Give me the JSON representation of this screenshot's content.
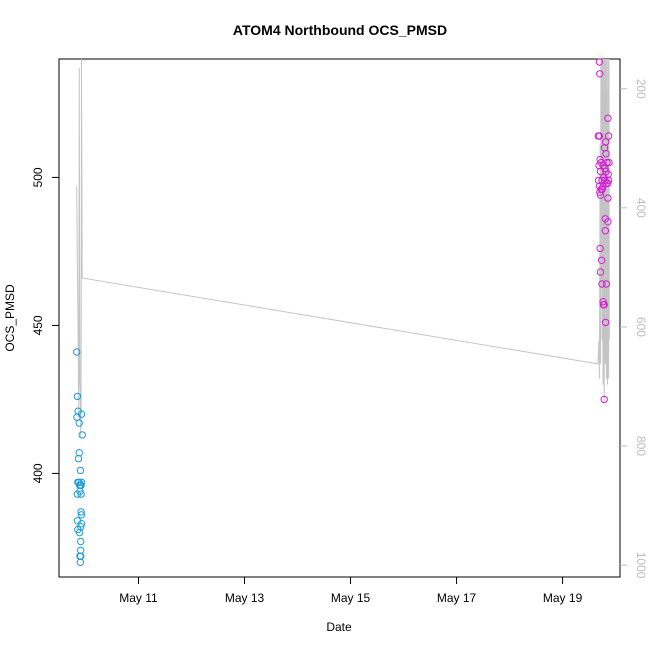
{
  "colors": {
    "series_a": "#1e9bdc",
    "series_b": "#d41ed4",
    "line": "#c4c4c4",
    "right_axis": "#bdbdbd"
  },
  "chart_data": {
    "type": "scatter",
    "title": "ATOM4 Northbound OCS_PMSD",
    "xlabel": "Date",
    "ylabel": "OCS_PMSD",
    "x_unit": "date",
    "xlim": [
      "2024-05-09T12:00",
      "2024-05-20T02:00"
    ],
    "ylim": [
      365,
      540
    ],
    "y_right_lim_reversed": [
      150,
      1020
    ],
    "x_ticks": [
      {
        "x": "2024-05-11T00:00",
        "label": "May 11"
      },
      {
        "x": "2024-05-13T00:00",
        "label": "May 13"
      },
      {
        "x": "2024-05-15T00:00",
        "label": "May 15"
      },
      {
        "x": "2024-05-17T00:00",
        "label": "May 17"
      },
      {
        "x": "2024-05-19T00:00",
        "label": "May 19"
      }
    ],
    "y_ticks": [
      400,
      450,
      500
    ],
    "y_right_ticks": [
      200,
      400,
      600,
      800,
      1000
    ],
    "grid": false,
    "series": [
      {
        "color_key": "series_a",
        "points": [
          [
            "2024-05-09T20:00",
            441
          ],
          [
            "2024-05-09T20:20",
            426
          ],
          [
            "2024-05-09T20:10",
            419
          ],
          [
            "2024-05-09T20:40",
            421
          ],
          [
            "2024-05-09T21:10",
            417
          ],
          [
            "2024-05-09T22:10",
            420
          ],
          [
            "2024-05-09T22:30",
            413
          ],
          [
            "2024-05-09T21:10",
            407
          ],
          [
            "2024-05-09T20:50",
            405
          ],
          [
            "2024-05-09T21:40",
            401
          ],
          [
            "2024-05-09T20:30",
            397
          ],
          [
            "2024-05-09T21:00",
            397
          ],
          [
            "2024-05-09T21:20",
            396
          ],
          [
            "2024-05-09T21:40",
            396
          ],
          [
            "2024-05-09T22:00",
            396
          ],
          [
            "2024-05-09T22:10",
            397
          ],
          [
            "2024-05-09T20:20",
            393
          ],
          [
            "2024-05-09T21:30",
            394
          ],
          [
            "2024-05-09T22:00",
            393
          ],
          [
            "2024-05-09T22:00",
            387
          ],
          [
            "2024-05-09T22:10",
            386
          ],
          [
            "2024-05-09T20:20",
            384
          ],
          [
            "2024-05-09T22:10",
            383
          ],
          [
            "2024-05-09T21:50",
            382
          ],
          [
            "2024-05-09T20:30",
            381
          ],
          [
            "2024-05-09T21:20",
            380
          ],
          [
            "2024-05-09T21:50",
            377
          ],
          [
            "2024-05-09T21:50",
            374
          ],
          [
            "2024-05-09T21:30",
            372
          ],
          [
            "2024-05-09T21:50",
            372
          ],
          [
            "2024-05-09T21:40",
            370
          ]
        ]
      },
      {
        "color_key": "series_b",
        "points": [
          [
            "2024-05-19T16:40",
            539
          ],
          [
            "2024-05-19T16:50",
            535
          ],
          [
            "2024-05-19T20:30",
            520
          ],
          [
            "2024-05-19T16:10",
            514
          ],
          [
            "2024-05-19T16:40",
            514
          ],
          [
            "2024-05-19T19:30",
            512
          ],
          [
            "2024-05-19T20:50",
            514
          ],
          [
            "2024-05-19T19:00",
            510
          ],
          [
            "2024-05-19T19:40",
            508
          ],
          [
            "2024-05-19T17:00",
            506
          ],
          [
            "2024-05-19T17:30",
            505
          ],
          [
            "2024-05-19T16:30",
            504
          ],
          [
            "2024-05-19T20:10",
            505
          ],
          [
            "2024-05-19T21:00",
            505
          ],
          [
            "2024-05-19T18:20",
            504
          ],
          [
            "2024-05-19T19:10",
            503
          ],
          [
            "2024-05-19T17:10",
            502
          ],
          [
            "2024-05-19T19:40",
            502
          ],
          [
            "2024-05-19T20:40",
            501
          ],
          [
            "2024-05-19T18:40",
            500
          ],
          [
            "2024-05-19T16:20",
            499
          ],
          [
            "2024-05-19T17:50",
            499
          ],
          [
            "2024-05-19T19:10",
            499
          ],
          [
            "2024-05-19T20:50",
            499
          ],
          [
            "2024-05-19T19:50",
            498
          ],
          [
            "2024-05-19T20:30",
            498
          ],
          [
            "2024-05-19T18:20",
            497
          ],
          [
            "2024-05-19T16:40",
            497
          ],
          [
            "2024-05-19T17:30",
            496
          ],
          [
            "2024-05-19T16:50",
            495
          ],
          [
            "2024-05-19T18:00",
            496
          ],
          [
            "2024-05-19T20:30",
            493
          ],
          [
            "2024-05-19T17:10",
            494
          ],
          [
            "2024-05-19T19:20",
            486
          ],
          [
            "2024-05-19T20:30",
            485
          ],
          [
            "2024-05-19T19:20",
            482
          ],
          [
            "2024-05-19T17:00",
            476
          ],
          [
            "2024-05-19T17:40",
            472
          ],
          [
            "2024-05-19T17:10",
            468
          ],
          [
            "2024-05-19T17:50",
            464
          ],
          [
            "2024-05-19T19:50",
            464
          ],
          [
            "2024-05-19T18:20",
            458
          ],
          [
            "2024-05-19T18:30",
            457
          ],
          [
            "2024-05-19T18:50",
            457
          ],
          [
            "2024-05-19T19:30",
            451
          ],
          [
            "2024-05-19T18:50",
            425
          ]
        ]
      }
    ],
    "line_series": {
      "color_key": "line",
      "points": [
        [
          "2024-05-09T20:00",
          497
        ],
        [
          "2024-05-09T20:10",
          485
        ],
        [
          "2024-05-09T20:20",
          470
        ],
        [
          "2024-05-09T20:40",
          447
        ],
        [
          "2024-05-09T20:50",
          428
        ],
        [
          "2024-05-09T21:00",
          419
        ],
        [
          "2024-05-09T21:10",
          537
        ],
        [
          "2024-05-09T21:20",
          475
        ],
        [
          "2024-05-09T21:30",
          430
        ],
        [
          "2024-05-09T21:40",
          428
        ],
        [
          "2024-05-09T21:50",
          412
        ],
        [
          "2024-05-09T22:00",
          421
        ],
        [
          "2024-05-09T22:10",
          540
        ],
        [
          "2024-05-09T22:30",
          466
        ],
        [
          "2024-05-19T16:00",
          437
        ],
        [
          "2024-05-19T16:30",
          445
        ],
        [
          "2024-05-19T16:40",
          432
        ],
        [
          "2024-05-19T16:50",
          470
        ],
        [
          "2024-05-19T17:00",
          511
        ],
        [
          "2024-05-19T17:10",
          437
        ],
        [
          "2024-05-19T17:20",
          540
        ],
        [
          "2024-05-19T17:30",
          463
        ],
        [
          "2024-05-19T17:40",
          540
        ],
        [
          "2024-05-19T17:50",
          445
        ],
        [
          "2024-05-19T18:00",
          540
        ],
        [
          "2024-05-19T18:10",
          450
        ],
        [
          "2024-05-19T18:20",
          430
        ],
        [
          "2024-05-19T18:30",
          540
        ],
        [
          "2024-05-19T18:40",
          445
        ],
        [
          "2024-05-19T18:50",
          424
        ],
        [
          "2024-05-19T19:00",
          540
        ],
        [
          "2024-05-19T19:10",
          460
        ],
        [
          "2024-05-19T19:20",
          437
        ],
        [
          "2024-05-19T19:30",
          540
        ],
        [
          "2024-05-19T19:40",
          450
        ],
        [
          "2024-05-19T19:50",
          432
        ],
        [
          "2024-05-19T20:00",
          540
        ],
        [
          "2024-05-19T20:10",
          455
        ],
        [
          "2024-05-19T20:20",
          430
        ],
        [
          "2024-05-19T20:30",
          540
        ],
        [
          "2024-05-19T20:40",
          470
        ],
        [
          "2024-05-19T20:50",
          432
        ],
        [
          "2024-05-19T21:00",
          540
        ],
        [
          "2024-05-19T21:10",
          445
        ]
      ]
    }
  }
}
